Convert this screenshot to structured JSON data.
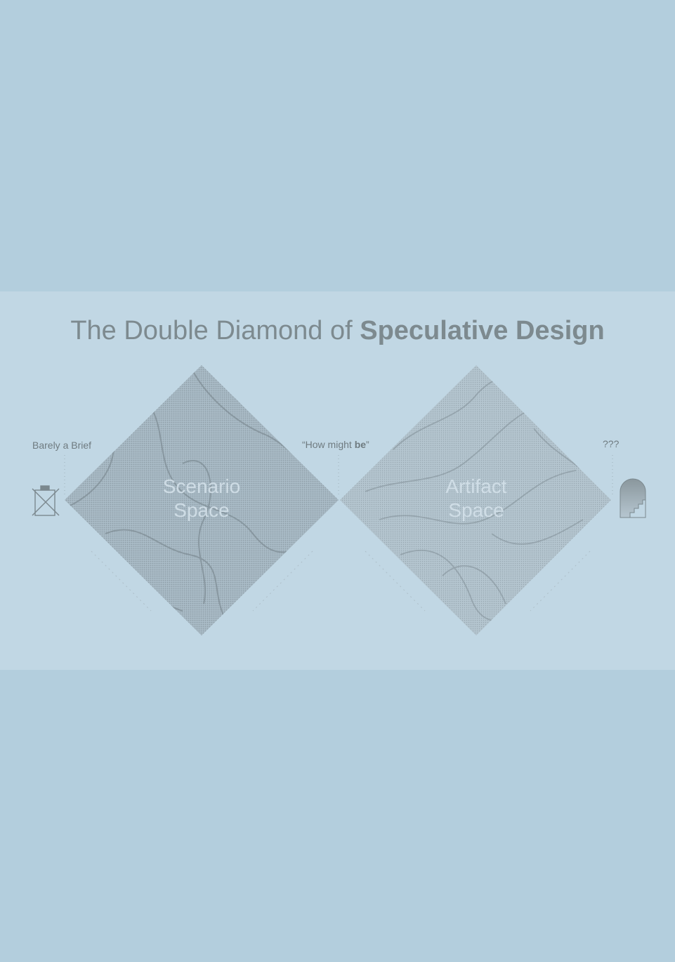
{
  "title": {
    "regular": "The Double Diamond of ",
    "bold": "Speculative Design"
  },
  "labels": {
    "start": "Barely a Brief",
    "middle_prefix": "“How might ",
    "middle_bold": "be",
    "middle_suffix": "”",
    "end": "???"
  },
  "diamonds": [
    {
      "line1": "Scenario",
      "line2": "Space"
    },
    {
      "line1": "Artifact",
      "line2": "Space"
    }
  ],
  "icons": {
    "start": "crossed-out-clipboard-icon",
    "end": "stairway-archway-icon"
  },
  "colors": {
    "page_background": "#b3cedd",
    "band_background": "#c1d7e4",
    "ink": "#7d8a8f",
    "diamond_texture": "#9aaab3"
  }
}
